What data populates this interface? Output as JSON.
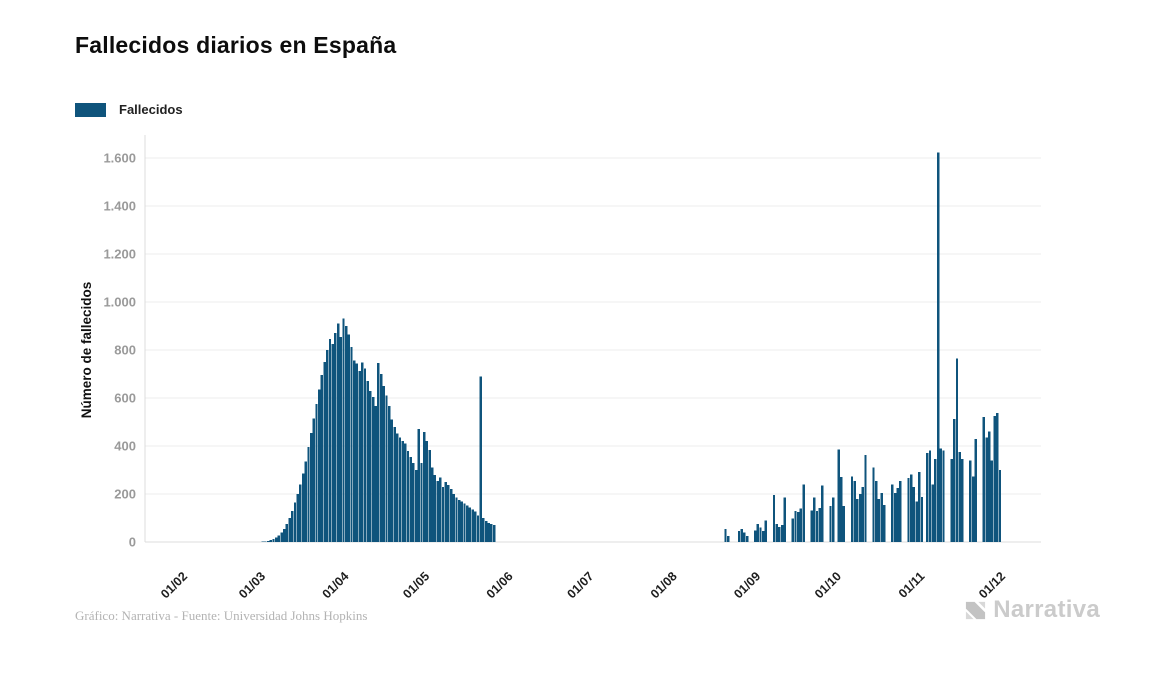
{
  "title": "Fallecidos diarios en España",
  "legend": {
    "label": "Fallecidos",
    "swatch_color": "#0f547c"
  },
  "footer": {
    "credit": "Gráfico: Narrativa - Fuente: Universidad Johns Hopkins"
  },
  "branding": {
    "logo_text": "Narrativa"
  },
  "colors": {
    "bar": "#0f547c",
    "grid": "#ececec",
    "axis_line": "#dcdcdc",
    "y_tick_text": "#9a9a9a",
    "x_tick_text": "#1f1f1f",
    "axis_title_text": "#111111"
  },
  "chart_data": {
    "type": "bar",
    "title": "Fallecidos diarios en España",
    "series_name": "Fallecidos",
    "xlabel": "",
    "ylabel": "Número de fallecidos",
    "ylim": [
      0,
      1700
    ],
    "grid": true,
    "legend_position": "top-left",
    "y_ticks": [
      0,
      200,
      400,
      600,
      800,
      1000,
      1200,
      1400,
      1600
    ],
    "y_tick_labels": [
      "0",
      "200",
      "400",
      "600",
      "800",
      "1.000",
      "1.200",
      "1.400",
      "1.600"
    ],
    "x_tick_labels": [
      "01/02",
      "01/03",
      "01/04",
      "01/05",
      "01/06",
      "01/07",
      "01/08",
      "01/09",
      "01/10",
      "01/11",
      "01/12"
    ],
    "max_value": 1623,
    "months": [
      {
        "label": "01/02",
        "values": [
          0,
          0,
          0,
          0,
          0,
          0,
          0,
          0,
          0,
          0,
          0,
          0,
          0,
          0,
          0,
          0,
          0,
          0,
          0,
          0,
          0,
          0,
          0,
          0,
          0,
          0,
          0,
          0,
          0
        ]
      },
      {
        "label": "01/03",
        "values": [
          1,
          2,
          3,
          5,
          8,
          12,
          18,
          28,
          40,
          55,
          75,
          100,
          130,
          165,
          200,
          240,
          285,
          335,
          395,
          455,
          515,
          575,
          635,
          695,
          750,
          800,
          845,
          825,
          870,
          910,
          855
        ]
      },
      {
        "label": "01/04",
        "values": [
          932,
          900,
          864,
          812,
          757,
          743,
          712,
          748,
          722,
          670,
          630,
          605,
          567,
          745,
          700,
          650,
          610,
          567,
          510,
          480,
          453,
          435,
          420,
          410,
          380,
          355,
          330,
          301,
          470,
          330
        ]
      },
      {
        "label": "01/05",
        "values": [
          458,
          420,
          383,
          310,
          280,
          255,
          268,
          230,
          250,
          237,
          220,
          200,
          185,
          176,
          168,
          160,
          152,
          144,
          136,
          128,
          110,
          690,
          100,
          88,
          80,
          74,
          70,
          0,
          0,
          0,
          0
        ]
      },
      {
        "label": "01/06",
        "values": [
          0,
          0,
          0,
          0,
          0,
          0,
          0,
          0,
          0,
          0,
          0,
          0,
          0,
          0,
          0,
          0,
          0,
          0,
          0,
          0,
          0,
          0,
          0,
          0,
          0,
          0,
          0,
          0,
          0,
          0
        ]
      },
      {
        "label": "01/07",
        "values": [
          0,
          0,
          0,
          0,
          0,
          0,
          0,
          0,
          0,
          0,
          0,
          0,
          0,
          0,
          0,
          0,
          0,
          0,
          0,
          0,
          0,
          0,
          0,
          0,
          0,
          0,
          0,
          0,
          0,
          0,
          0
        ]
      },
      {
        "label": "01/08",
        "values": [
          0,
          0,
          0,
          0,
          0,
          0,
          0,
          0,
          0,
          0,
          0,
          0,
          0,
          0,
          0,
          0,
          0,
          0,
          0,
          0,
          55,
          25,
          0,
          0,
          0,
          45,
          55,
          40,
          25,
          0,
          0
        ]
      },
      {
        "label": "01/09",
        "values": [
          48,
          75,
          60,
          45,
          90,
          0,
          0,
          195,
          75,
          62,
          70,
          185,
          0,
          0,
          98,
          130,
          125,
          140,
          240,
          0,
          0,
          132,
          186,
          130,
          142,
          235,
          0,
          0,
          150,
          185
        ]
      },
      {
        "label": "01/10",
        "values": [
          0,
          385,
          270,
          150,
          0,
          0,
          273,
          255,
          180,
          200,
          230,
          362,
          0,
          0,
          310,
          255,
          180,
          205,
          155,
          0,
          0,
          240,
          205,
          225,
          255,
          0,
          0,
          267,
          282,
          230,
          168
        ]
      },
      {
        "label": "01/11",
        "values": [
          292,
          188,
          0,
          370,
          382,
          240,
          345,
          1623,
          390,
          382,
          0,
          0,
          345,
          512,
          765,
          375,
          345,
          0,
          0,
          340,
          272,
          430,
          0,
          0,
          520,
          435,
          460,
          340,
          525,
          537
        ]
      },
      {
        "label": "01/12",
        "values": [
          300
        ]
      }
    ]
  }
}
